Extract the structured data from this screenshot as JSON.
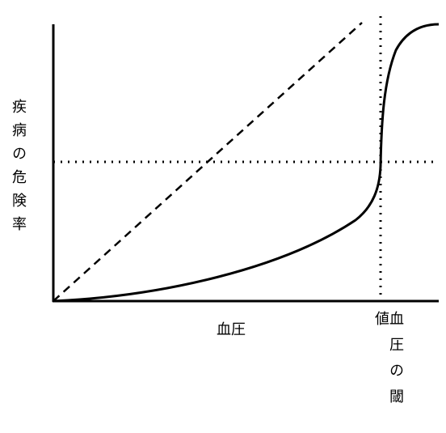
{
  "y_axis_label": "疾病の危険率",
  "x_axis_label": "血圧",
  "threshold_label": "血圧の閾値"
}
